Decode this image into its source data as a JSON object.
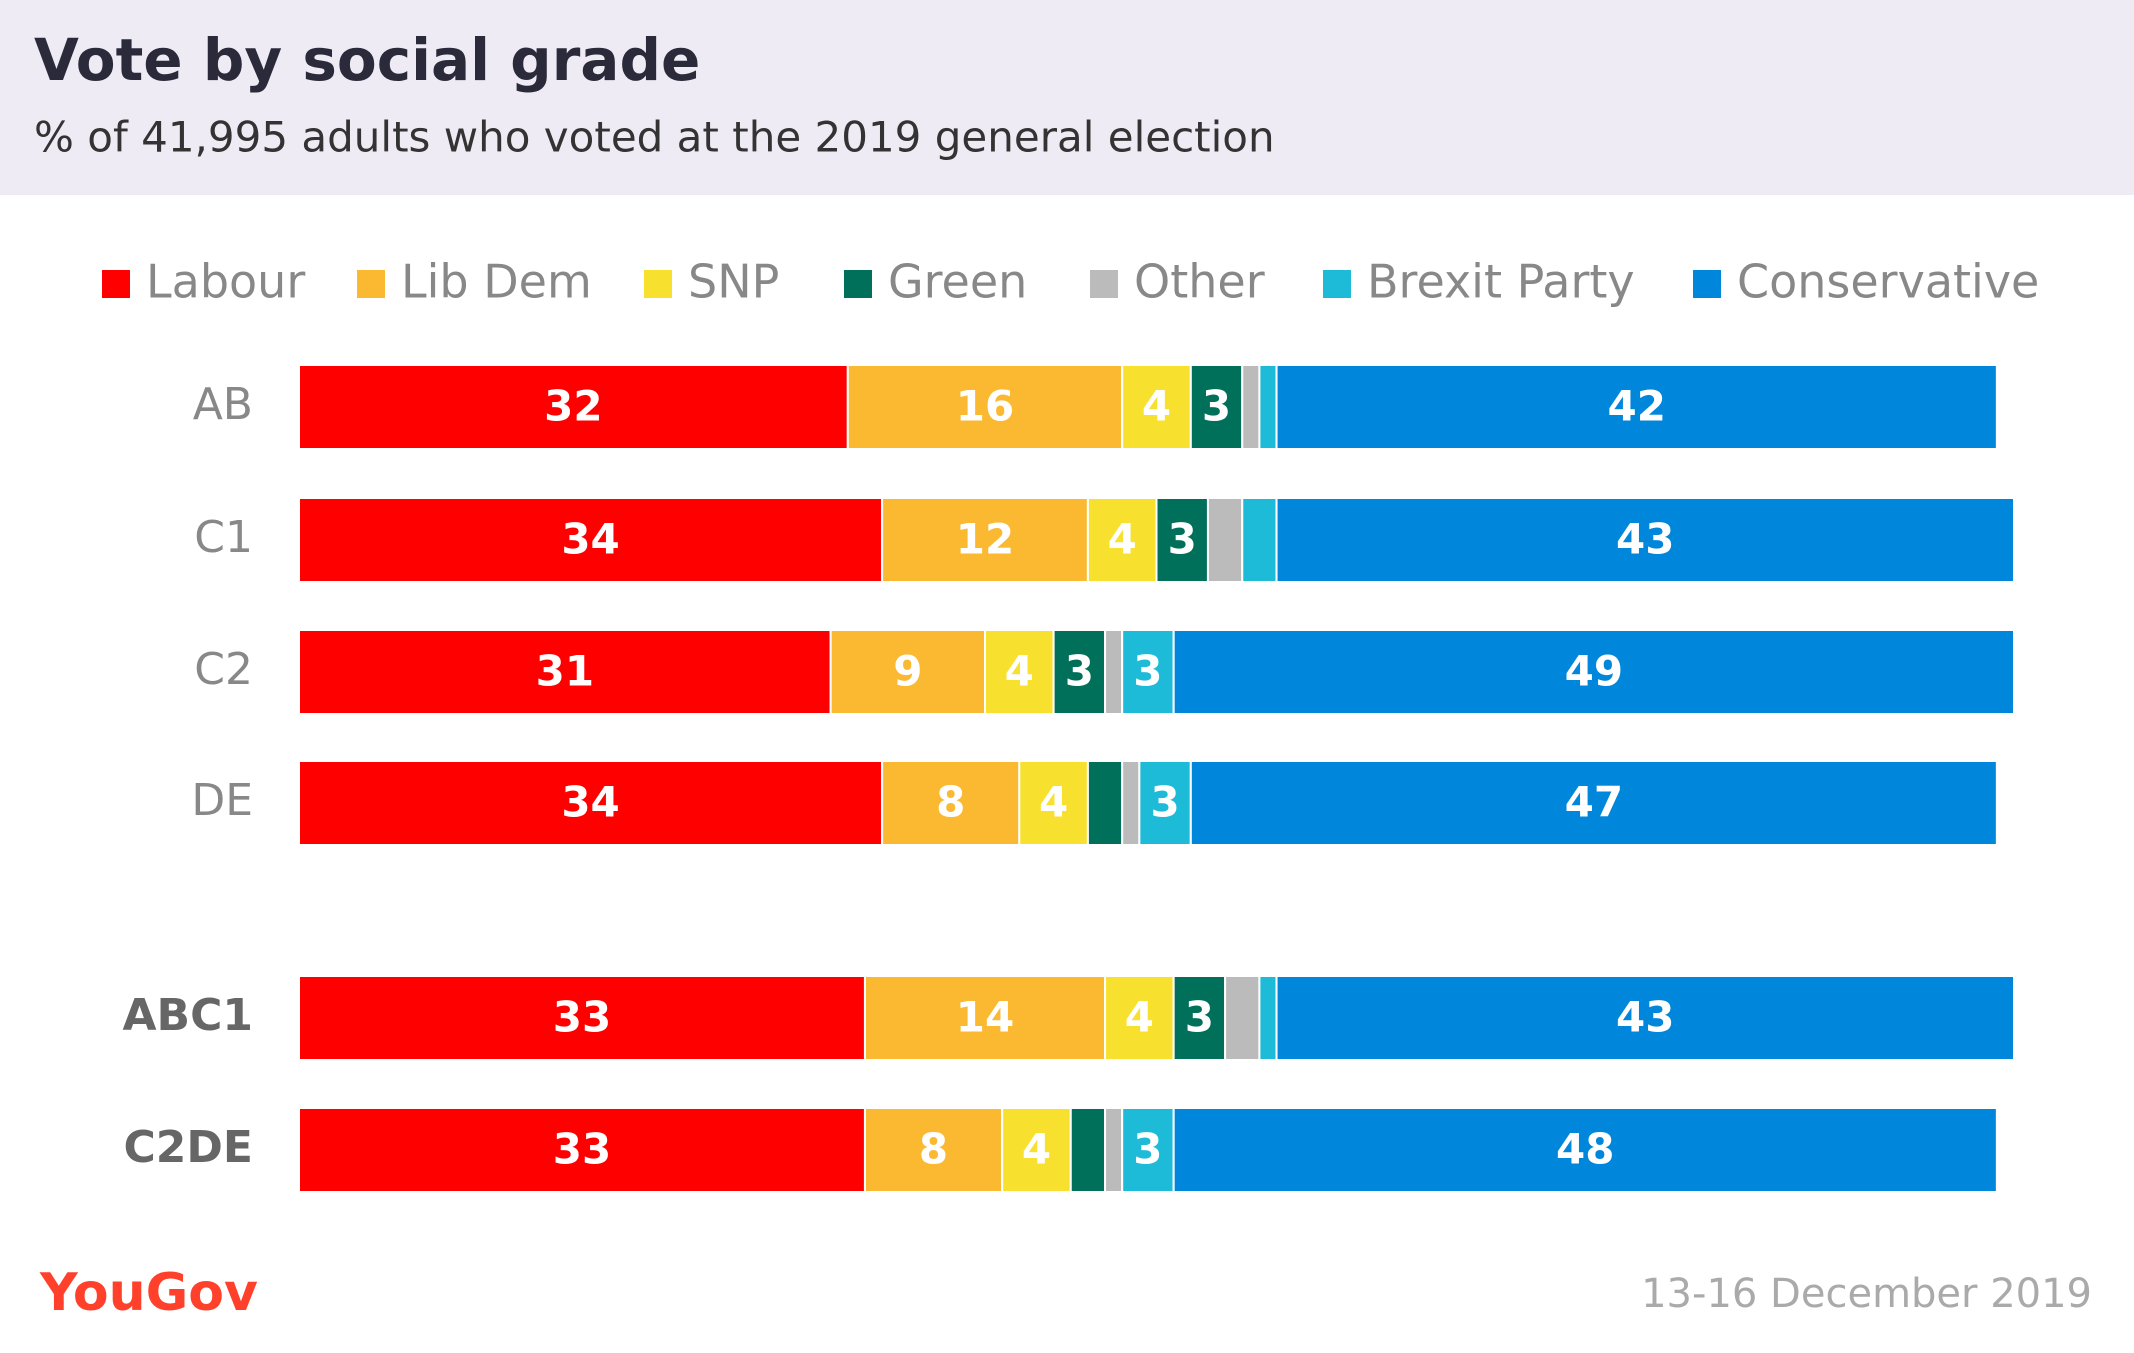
{
  "chart_data": {
    "type": "stacked-barh",
    "title": "Vote by social grade",
    "subtitle": "% of 41,995 adults who voted at the 2019 general election",
    "categories": [
      "AB",
      "C1",
      "C2",
      "DE",
      "ABC1",
      "C2DE"
    ],
    "xlim": [
      0,
      100
    ],
    "series": [
      {
        "name": "Labour",
        "color": "#ff0000",
        "values": [
          32,
          34,
          31,
          34,
          33,
          33
        ]
      },
      {
        "name": "Lib Dem",
        "color": "#fbb931",
        "values": [
          16,
          12,
          9,
          8,
          14,
          8
        ]
      },
      {
        "name": "SNP",
        "color": "#f8e12e",
        "values": [
          4,
          4,
          4,
          4,
          4,
          4
        ]
      },
      {
        "name": "Green",
        "color": "#00705b",
        "values": [
          3,
          3,
          3,
          2,
          3,
          2
        ]
      },
      {
        "name": "Other",
        "color": "#bbbbbb",
        "values": [
          1,
          2,
          1,
          1,
          2,
          1
        ]
      },
      {
        "name": "Brexit Party",
        "color": "#1ebbd8",
        "values": [
          1,
          2,
          3,
          3,
          1,
          3
        ]
      },
      {
        "name": "Conservative",
        "color": "#0087dc",
        "values": [
          42,
          43,
          49,
          47,
          43,
          48
        ]
      }
    ],
    "logo": "YouGov",
    "date": "13-16 December 2019"
  }
}
